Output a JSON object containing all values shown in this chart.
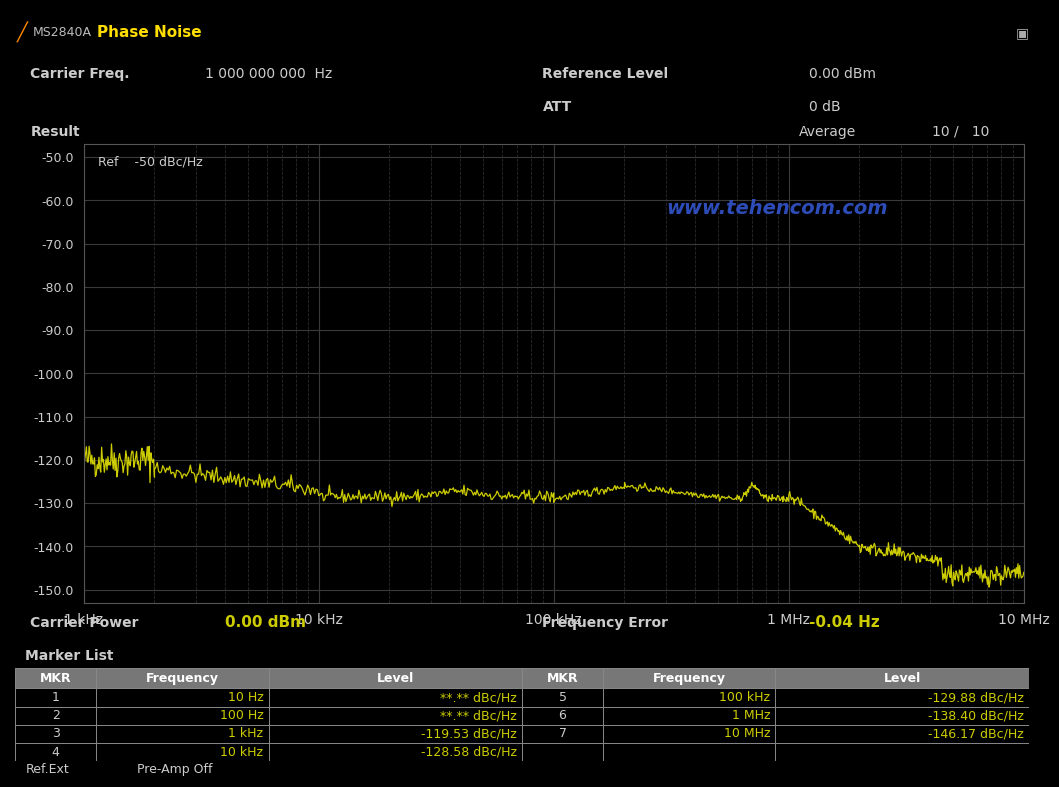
{
  "title_bar_color": "#3a2e00",
  "title_bar_text": "Phase Noise",
  "title_bar_logo": "MS2840A",
  "bg_color": "#000000",
  "result_bar_color": "#555555",
  "plot_bg": "#000000",
  "curve_color": "#cccc00",
  "ref_label": "Ref",
  "ref_value": "-50 dBc/Hz",
  "yticks": [
    -50.0,
    -60.0,
    -70.0,
    -80.0,
    -90.0,
    -100.0,
    -110.0,
    -120.0,
    -130.0,
    -140.0,
    -150.0
  ],
  "ylim": [
    -153,
    -47
  ],
  "xlim_log": [
    1000,
    10000000
  ],
  "xticklabels": [
    "1 kHz",
    "10 kHz",
    "100 kHz",
    "1 MHz",
    "10 MHz"
  ],
  "xtick_positions": [
    1000,
    10000,
    100000,
    1000000,
    10000000
  ],
  "carrier_freq_label": "Carrier Freq.",
  "carrier_freq_value": "1 000 000 000  Hz",
  "ref_level_label": "Reference Level",
  "ref_level_value": "0.00 dBm",
  "att_label": "ATT",
  "att_value": "0 dB",
  "result_label": "Result",
  "average_label": "Average",
  "average_value": "10 /   10",
  "carrier_power_label": "Carrier Power",
  "carrier_power_value": "0.00 dBm",
  "freq_error_label": "Frequency Error",
  "freq_error_value": "-0.04 Hz",
  "watermark": "www.tehencom.com",
  "watermark_color": "#3355cc",
  "marker_list_label": "Marker List",
  "table_border_color": "#888888",
  "table_header_bg": "#777777",
  "table_rows_left": [
    [
      "1",
      "10 Hz",
      "**.** dBc/Hz"
    ],
    [
      "2",
      "100 Hz",
      "**.** dBc/Hz"
    ],
    [
      "3",
      "1 kHz",
      "-119.53 dBc/Hz"
    ],
    [
      "4",
      "10 kHz",
      "-128.58 dBc/Hz"
    ]
  ],
  "table_rows_right": [
    [
      "5",
      "100 kHz",
      "-129.88 dBc/Hz"
    ],
    [
      "6",
      "1 MHz",
      "-138.40 dBc/Hz"
    ],
    [
      "7",
      "10 MHz",
      "-146.17 dBc/Hz"
    ],
    [
      "",
      "",
      ""
    ]
  ],
  "status_bar_text1": "Ref.Ext",
  "status_bar_text2": "Pre-Amp Off",
  "status_bar_color": "#cccccc"
}
